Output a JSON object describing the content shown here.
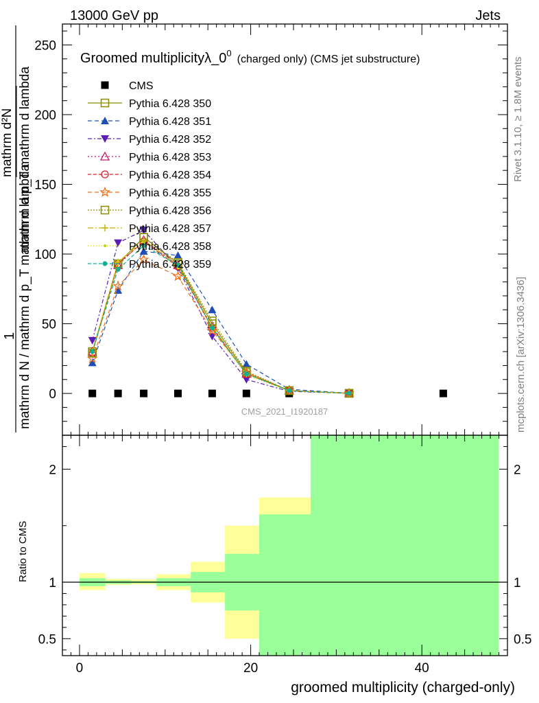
{
  "header": {
    "left": "13000 GeV pp",
    "right": "Jets"
  },
  "side": {
    "rivet": "Rivet 3.1.10, ≥ 1.8M events",
    "mcplots": "mcplots.cern.ch [arXiv:1306.3436]"
  },
  "watermark": "CMS_2021_I1920187",
  "chart_data": [
    {
      "type": "line",
      "title": "Groomed multiplicity",
      "title_lambda": "λ_0",
      "title_sup": "0",
      "title_suffix": "(charged only) (CMS jet substructure)",
      "ylabel_prefactor": "1",
      "ylabel_denominator": "mathrm d N / mathrm d p_T mathrm d lambda",
      "ylabel_top": "mathrm d²N",
      "ylabel_top2": "mathrm d p_T mathrm d lambda",
      "ylim": [
        -30,
        265
      ],
      "xlim": [
        -2,
        50
      ],
      "yticks": [
        0,
        50,
        100,
        150,
        200,
        250
      ],
      "yticklabels": [
        "0",
        "50",
        "100",
        "150",
        "200",
        "250"
      ],
      "x": [
        1.5,
        4.5,
        7.5,
        11.5,
        15.5,
        19.5,
        24.5,
        31.5,
        42.5
      ],
      "series": [
        {
          "name": "CMS",
          "marker": "square-filled",
          "color": "#000000",
          "dash": "none",
          "values": [
            0,
            0,
            0,
            0,
            0,
            0,
            0,
            0,
            0
          ]
        },
        {
          "name": "Pythia 6.428 350",
          "marker": "square-open",
          "color": "#8b8b00",
          "dash": "solid",
          "values": [
            30,
            93,
            112,
            93,
            50,
            15,
            2,
            0.1,
            null
          ]
        },
        {
          "name": "Pythia 6.428 351",
          "marker": "triangle-up-filled",
          "color": "#1f4fb4",
          "dash": "6,4",
          "values": [
            22,
            74,
            102,
            99,
            60,
            21,
            3,
            0.2,
            null
          ]
        },
        {
          "name": "Pythia 6.428 352",
          "marker": "triangle-down-filled",
          "color": "#5a1eb4",
          "dash": "6,3,2,3",
          "values": [
            38,
            108,
            117,
            90,
            41,
            10,
            1.5,
            0.05,
            null
          ]
        },
        {
          "name": "Pythia 6.428 353",
          "marker": "triangle-up-open",
          "color": "#c0186c",
          "dash": "2,3",
          "values": [
            30,
            92,
            110,
            92,
            48,
            14,
            2,
            0.1,
            null
          ]
        },
        {
          "name": "Pythia 6.428 354",
          "marker": "circle-open",
          "color": "#d2222a",
          "dash": "5,3",
          "values": [
            29,
            93,
            109,
            91,
            47,
            14,
            2,
            0.1,
            null
          ]
        },
        {
          "name": "Pythia 6.428 355",
          "marker": "star-open",
          "color": "#f07018",
          "dash": "6,4",
          "values": [
            25,
            77,
            96,
            84,
            45,
            15,
            2.2,
            0.1,
            null
          ]
        },
        {
          "name": "Pythia 6.428 356",
          "marker": "square-open",
          "color": "#8b8b00",
          "dash": "2,2",
          "values": [
            29,
            93,
            112,
            94,
            52,
            16,
            2,
            0.1,
            null
          ]
        },
        {
          "name": "Pythia 6.428 357",
          "marker": "plus",
          "color": "#cdb000",
          "dash": "8,3,2,3",
          "values": [
            30,
            94,
            110,
            92,
            48,
            14,
            2,
            0.1,
            null
          ]
        },
        {
          "name": "Pythia 6.428 358",
          "marker": "dot",
          "color": "#c8d000",
          "dash": "1,3",
          "values": [
            31,
            95,
            108,
            90,
            46,
            13,
            1.8,
            0.1,
            null
          ]
        },
        {
          "name": "Pythia 6.428 359",
          "marker": "circle-filled-small",
          "color": "#10b090",
          "dash": "5,3",
          "values": [
            30,
            89,
            106,
            92,
            47,
            14,
            2,
            0.1,
            null
          ]
        }
      ]
    },
    {
      "type": "area",
      "ylabel": "Ratio to CMS",
      "xlabel": "groomed multiplicity (charged-only)",
      "ylim": [
        0.35,
        2.3
      ],
      "xlim": [
        -2,
        50
      ],
      "xticks": [
        0,
        20,
        40
      ],
      "xticklabels": [
        "0",
        "20",
        "40"
      ],
      "yticks": [
        0.5,
        1,
        2
      ],
      "yticklabels": [
        "0.5",
        "1",
        "2"
      ],
      "reference_line": 1,
      "bins": [
        {
          "x0": 0,
          "x1": 3,
          "yellow": [
            0.93,
            1.08
          ],
          "green": [
            0.965,
            1.035
          ]
        },
        {
          "x0": 3,
          "x1": 6,
          "yellow": [
            0.975,
            1.03
          ],
          "green": [
            0.985,
            1.015
          ]
        },
        {
          "x0": 6,
          "x1": 9,
          "yellow": [
            0.98,
            1.025
          ],
          "green": [
            0.99,
            1.01
          ]
        },
        {
          "x0": 9,
          "x1": 13,
          "yellow": [
            0.93,
            1.07
          ],
          "green": [
            0.965,
            1.035
          ]
        },
        {
          "x0": 13,
          "x1": 17,
          "yellow": [
            0.82,
            1.18
          ],
          "green": [
            0.91,
            1.09
          ]
        },
        {
          "x0": 17,
          "x1": 21,
          "yellow": [
            0.5,
            1.5
          ],
          "green": [
            0.75,
            1.25
          ]
        },
        {
          "x0": 21,
          "x1": 27,
          "yellow": [
            0.35,
            1.75
          ],
          "green": [
            0.35,
            1.6
          ]
        },
        {
          "x0": 27,
          "x1": 49,
          "yellow": [
            0.35,
            2.3
          ],
          "green": [
            0.35,
            2.3
          ]
        }
      ],
      "colors": {
        "yellow": "#ffff99",
        "green": "#99ff99"
      }
    }
  ]
}
